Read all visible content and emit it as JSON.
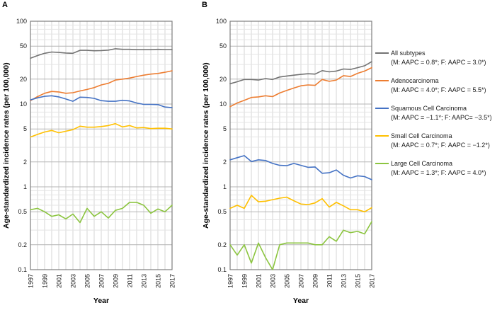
{
  "axes": {
    "y_label": "Age-standardized incidence rates (per 100,000)",
    "x_label": "Year"
  },
  "panels": [
    {
      "label": "A"
    },
    {
      "label": "B"
    }
  ],
  "colors": {
    "all_subtypes": "#737373",
    "adenocarcinoma": "#ED7D31",
    "squamous_cell": "#4472C4",
    "small_cell": "#FFC000",
    "large_cell": "#8CC540",
    "grid_year": "#D4D4D4",
    "grid_minor": "#E4E4E4",
    "grid_major": "#B5B5B5",
    "axis_border": "#7F7F7F",
    "tick_text": "#1a1a1a"
  },
  "legend": {
    "items": [
      {
        "name": "All subtypes",
        "aapc": "(M: AAPC = 0.8*; F: AAPC = 3.0*)",
        "color_key": "all_subtypes"
      },
      {
        "name": "Adenocarcinoma",
        "aapc": "(M: AAPC = 4.0*; F: AAPC = 5.5*)",
        "color_key": "adenocarcinoma"
      },
      {
        "name": "Squamous Cell Carcinoma",
        "aapc": "(M: AAPC = −1.1*; F: AAPC= −3.5*)",
        "color_key": "squamous_cell"
      },
      {
        "name": "Small Cell Carcinoma",
        "aapc": "(M: AAPC = 0.7*; F: AAPC = −1.2*)",
        "color_key": "small_cell"
      },
      {
        "name": "Large Cell Carcinoma",
        "aapc": "(M: AAPC = 1.3*; F: AAPC = 4.0*)",
        "color_key": "large_cell"
      }
    ]
  },
  "chart_data": [
    {
      "type": "line",
      "panel": "A",
      "ylog": true,
      "ylim": [
        0.1,
        100
      ],
      "grid": true,
      "legend_position": "right-of-figure",
      "y_ticks": [
        100,
        50,
        20,
        10,
        5,
        2,
        1,
        0.5,
        0.2,
        0.1
      ],
      "y_minor": [
        0.3,
        0.4,
        0.6,
        0.7,
        0.8,
        0.9,
        3,
        4,
        6,
        7,
        8,
        9,
        30,
        40,
        60,
        70,
        80,
        90
      ],
      "x": [
        1997,
        1998,
        1999,
        2000,
        2001,
        2002,
        2003,
        2004,
        2005,
        2006,
        2007,
        2008,
        2009,
        2010,
        2011,
        2012,
        2013,
        2014,
        2015,
        2016,
        2017
      ],
      "x_tick_labels": [
        "1997",
        "1999",
        "2001",
        "2003",
        "2005",
        "2007",
        "2009",
        "2011",
        "2013",
        "2015",
        "2017"
      ],
      "series": [
        {
          "name": "All subtypes",
          "color_key": "all_subtypes",
          "values": [
            35.7,
            38.5,
            41.0,
            42.5,
            42.0,
            41.3,
            41.0,
            44.5,
            44.5,
            44.0,
            44.3,
            44.8,
            46.5,
            45.8,
            45.8,
            45.3,
            45.3,
            45.3,
            45.8,
            45.5,
            45.5
          ]
        },
        {
          "name": "Adenocarcinoma",
          "color_key": "adenocarcinoma",
          "values": [
            11.0,
            12.3,
            13.5,
            14.2,
            14.0,
            13.5,
            13.7,
            14.4,
            15.0,
            15.8,
            17.0,
            17.8,
            19.5,
            20.0,
            20.6,
            21.5,
            22.3,
            23.0,
            23.4,
            24.2,
            25.2
          ]
        },
        {
          "name": "Squamous Cell Carcinoma",
          "color_key": "squamous_cell",
          "values": [
            11.2,
            11.9,
            12.4,
            12.6,
            12.2,
            11.5,
            10.8,
            12.1,
            12.0,
            11.7,
            11.0,
            10.8,
            10.8,
            11.1,
            10.9,
            10.3,
            9.9,
            9.9,
            9.85,
            9.2,
            9.05
          ]
        },
        {
          "name": "Small Cell Carcinoma",
          "color_key": "small_cell",
          "values": [
            4.0,
            4.3,
            4.6,
            4.8,
            4.5,
            4.7,
            4.9,
            5.4,
            5.25,
            5.25,
            5.35,
            5.5,
            5.8,
            5.3,
            5.5,
            5.15,
            5.2,
            5.05,
            5.1,
            5.1,
            5.0
          ]
        },
        {
          "name": "Large Cell Carcinoma",
          "color_key": "large_cell",
          "values": [
            0.53,
            0.55,
            0.5,
            0.44,
            0.46,
            0.41,
            0.47,
            0.37,
            0.55,
            0.44,
            0.5,
            0.42,
            0.52,
            0.55,
            0.65,
            0.65,
            0.6,
            0.48,
            0.54,
            0.5,
            0.6
          ]
        }
      ]
    },
    {
      "type": "line",
      "panel": "B",
      "ylog": true,
      "ylim": [
        0.1,
        100
      ],
      "grid": true,
      "legend_position": "right-of-figure",
      "y_ticks": [
        100,
        50,
        20,
        10,
        5,
        2,
        1,
        0.5,
        0.2,
        0.1
      ],
      "y_minor": [
        0.3,
        0.4,
        0.6,
        0.7,
        0.8,
        0.9,
        3,
        4,
        6,
        7,
        8,
        9,
        30,
        40,
        60,
        70,
        80,
        90
      ],
      "x": [
        1997,
        1998,
        1999,
        2000,
        2001,
        2002,
        2003,
        2004,
        2005,
        2006,
        2007,
        2008,
        2009,
        2010,
        2011,
        2012,
        2013,
        2014,
        2015,
        2016,
        2017
      ],
      "x_tick_labels": [
        "1997",
        "1999",
        "2001",
        "2003",
        "2005",
        "2007",
        "2009",
        "2011",
        "2013",
        "2015",
        "2017"
      ],
      "series": [
        {
          "name": "All subtypes",
          "color_key": "all_subtypes",
          "values": [
            17.6,
            18.6,
            19.8,
            19.8,
            19.5,
            20.3,
            19.8,
            21.2,
            21.8,
            22.3,
            22.8,
            23.2,
            23.0,
            25.3,
            24.5,
            25.0,
            26.5,
            26.2,
            27.5,
            29.0,
            32.5
          ]
        },
        {
          "name": "Adenocarcinoma",
          "color_key": "adenocarcinoma",
          "values": [
            9.3,
            10.3,
            11.1,
            12.0,
            12.2,
            12.6,
            12.3,
            13.6,
            14.6,
            15.6,
            16.6,
            17.0,
            16.8,
            19.8,
            18.8,
            19.5,
            22.0,
            21.5,
            23.5,
            25.0,
            27.5
          ]
        },
        {
          "name": "Squamous Cell Carcinoma",
          "color_key": "squamous_cell",
          "values": [
            2.12,
            2.25,
            2.38,
            2.02,
            2.12,
            2.08,
            1.92,
            1.82,
            1.8,
            1.92,
            1.82,
            1.72,
            1.74,
            1.46,
            1.48,
            1.6,
            1.38,
            1.28,
            1.36,
            1.33,
            1.22
          ]
        },
        {
          "name": "Small Cell Carcinoma",
          "color_key": "small_cell",
          "values": [
            0.55,
            0.6,
            0.55,
            0.79,
            0.66,
            0.67,
            0.7,
            0.73,
            0.75,
            0.68,
            0.62,
            0.61,
            0.64,
            0.72,
            0.57,
            0.65,
            0.59,
            0.53,
            0.53,
            0.5,
            0.56
          ]
        },
        {
          "name": "Large Cell Carcinoma",
          "color_key": "large_cell",
          "values": [
            0.2,
            0.15,
            0.2,
            0.12,
            0.21,
            0.14,
            0.1,
            0.2,
            0.21,
            0.21,
            0.21,
            0.21,
            0.2,
            0.2,
            0.25,
            0.22,
            0.3,
            0.28,
            0.29,
            0.27,
            0.38
          ]
        }
      ]
    }
  ]
}
